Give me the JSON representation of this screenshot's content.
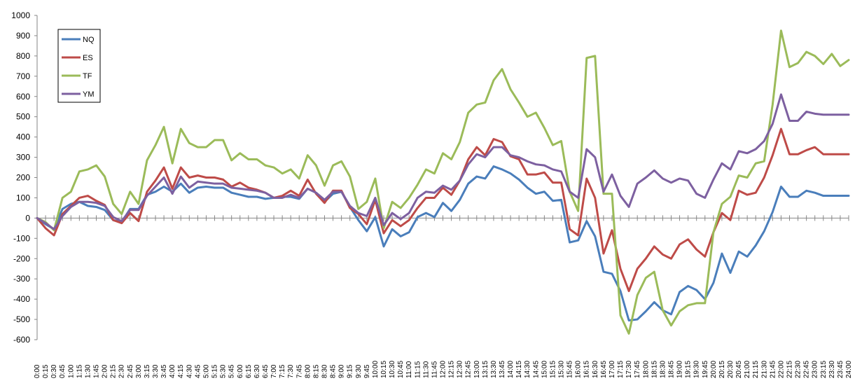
{
  "chart_data": {
    "type": "line",
    "title": "",
    "xlabel": "",
    "ylabel": "",
    "ylim": [
      -600,
      1000
    ],
    "y_ticks": [
      "1000",
      "900",
      "800",
      "700",
      "600",
      "500",
      "400",
      "300",
      "200",
      "100",
      "0",
      "-100",
      "-200",
      "-300",
      "-400",
      "-500",
      "-600"
    ],
    "x": [
      "0:00",
      "0:15",
      "0:30",
      "0:45",
      "1:00",
      "1:15",
      "1:30",
      "1:45",
      "2:00",
      "2:15",
      "2:30",
      "2:45",
      "3:00",
      "3:15",
      "3:30",
      "3:45",
      "4:00",
      "4:15",
      "4:30",
      "4:45",
      "5:00",
      "5:15",
      "5:30",
      "5:45",
      "6:00",
      "6:15",
      "6:30",
      "6:45",
      "7:00",
      "7:15",
      "7:30",
      "7:45",
      "8:00",
      "8:15",
      "8:30",
      "8:45",
      "9:00",
      "9:15",
      "9:30",
      "9:45",
      "10:00",
      "10:15",
      "10:30",
      "10:45",
      "11:00",
      "11:15",
      "11:30",
      "11:45",
      "12:00",
      "12:15",
      "12:30",
      "12:45",
      "13:00",
      "13:15",
      "13:30",
      "13:45",
      "14:00",
      "14:15",
      "14:30",
      "14:45",
      "15:00",
      "15:15",
      "15:30",
      "15:45",
      "16:00",
      "16:15",
      "16:30",
      "16:45",
      "17:00",
      "17:15",
      "17:30",
      "17:45",
      "18:00",
      "18:15",
      "18:30",
      "18:45",
      "19:00",
      "19:15",
      "19:30",
      "19:45",
      "20:00",
      "20:15",
      "20:30",
      "20:45",
      "21:00",
      "21:15",
      "21:30",
      "21:45",
      "22:00",
      "22:15",
      "22:30",
      "22:45",
      "23:00",
      "23:15",
      "23:30",
      "23:45",
      "24:00"
    ],
    "grid": false,
    "legend_position": "top-left",
    "series": [
      {
        "name": "NQ",
        "color": "#4a7ebb",
        "values": [
          0,
          -30,
          -55,
          45,
          70,
          80,
          60,
          55,
          40,
          -10,
          -20,
          45,
          45,
          115,
          130,
          155,
          130,
          170,
          125,
          150,
          155,
          150,
          150,
          125,
          115,
          105,
          105,
          95,
          100,
          105,
          105,
          95,
          145,
          125,
          80,
          120,
          130,
          55,
          -10,
          -65,
          5,
          -140,
          -55,
          -90,
          -70,
          5,
          25,
          5,
          75,
          35,
          90,
          170,
          205,
          195,
          255,
          240,
          220,
          190,
          150,
          120,
          130,
          85,
          90,
          -120,
          -110,
          -15,
          -90,
          -265,
          -275,
          -360,
          -505,
          -500,
          -460,
          -415,
          -455,
          -475,
          -365,
          -335,
          -355,
          -400,
          -320,
          -175,
          -270,
          -165,
          -190,
          -135,
          -65,
          30,
          155,
          105,
          105,
          135,
          125,
          110,
          110,
          110,
          110
        ]
      },
      {
        "name": "ES",
        "color": "#be4b48",
        "values": [
          0,
          -50,
          -85,
          20,
          60,
          100,
          110,
          85,
          65,
          -10,
          -25,
          25,
          -15,
          130,
          185,
          250,
          145,
          250,
          200,
          210,
          200,
          200,
          190,
          155,
          175,
          150,
          140,
          125,
          100,
          110,
          135,
          110,
          190,
          120,
          75,
          135,
          135,
          50,
          20,
          -30,
          90,
          -75,
          -10,
          -40,
          -10,
          50,
          100,
          100,
          150,
          115,
          185,
          290,
          350,
          310,
          390,
          375,
          305,
          290,
          215,
          215,
          225,
          175,
          175,
          -55,
          -85,
          195,
          100,
          -175,
          -60,
          -250,
          -360,
          -250,
          -200,
          -140,
          -180,
          -200,
          -130,
          -105,
          -155,
          -190,
          -70,
          25,
          -10,
          135,
          115,
          125,
          200,
          310,
          440,
          315,
          315,
          335,
          350,
          315,
          315,
          315,
          315
        ]
      },
      {
        "name": "TF",
        "color": "#9bbb59",
        "values": [
          0,
          -20,
          -60,
          100,
          130,
          230,
          240,
          260,
          205,
          70,
          20,
          130,
          70,
          285,
          360,
          450,
          270,
          440,
          370,
          350,
          350,
          385,
          385,
          285,
          320,
          290,
          290,
          260,
          250,
          220,
          240,
          195,
          310,
          260,
          160,
          260,
          280,
          205,
          45,
          80,
          195,
          -50,
          80,
          50,
          100,
          165,
          240,
          220,
          320,
          290,
          375,
          520,
          560,
          570,
          680,
          735,
          635,
          570,
          500,
          520,
          445,
          360,
          380,
          130,
          35,
          790,
          800,
          120,
          120,
          -480,
          -570,
          -380,
          -295,
          -265,
          -455,
          -530,
          -460,
          -430,
          -420,
          -420,
          -70,
          70,
          105,
          210,
          200,
          270,
          280,
          560,
          925,
          745,
          765,
          820,
          800,
          760,
          810,
          750,
          780
        ]
      },
      {
        "name": "YM",
        "color": "#7d60a0",
        "values": [
          0,
          -25,
          -55,
          10,
          55,
          80,
          80,
          75,
          60,
          5,
          -15,
          40,
          40,
          110,
          155,
          200,
          120,
          205,
          150,
          180,
          175,
          170,
          170,
          150,
          145,
          140,
          135,
          125,
          100,
          100,
          115,
          100,
          145,
          125,
          90,
          130,
          130,
          60,
          25,
          10,
          100,
          -35,
          25,
          -5,
          25,
          100,
          130,
          125,
          160,
          140,
          185,
          265,
          315,
          300,
          350,
          350,
          310,
          300,
          280,
          265,
          260,
          240,
          230,
          130,
          100,
          340,
          300,
          130,
          215,
          110,
          55,
          170,
          200,
          235,
          195,
          175,
          195,
          185,
          120,
          100,
          190,
          270,
          240,
          330,
          320,
          340,
          380,
          465,
          610,
          480,
          480,
          525,
          515,
          510,
          510,
          510,
          510
        ]
      }
    ]
  }
}
